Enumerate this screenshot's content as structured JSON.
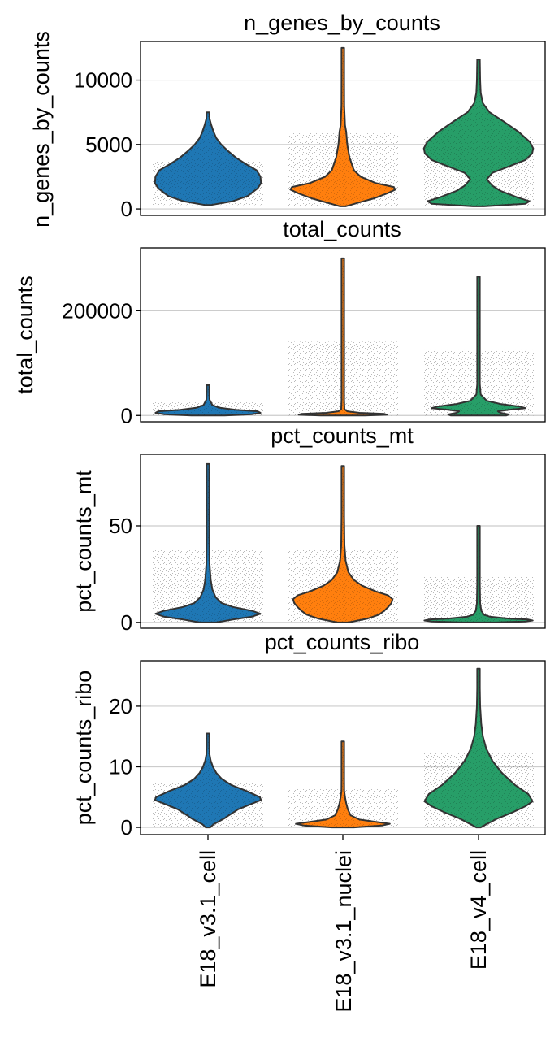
{
  "chart_data": {
    "type": "violin",
    "categories": [
      "E18_v3.1_cell",
      "E18_v3.1_nuclei",
      "E18_v4_cell"
    ],
    "colors": [
      "#1f77b4",
      "#ff7f0e",
      "#279e68"
    ],
    "panels": [
      {
        "title": "n_genes_by_counts",
        "ylabel": "n_genes_by_counts",
        "yticks": [
          0,
          5000,
          10000
        ],
        "ytick_labels": [
          "0",
          "5000",
          "10000"
        ],
        "ylim": [
          -500,
          13000
        ],
        "violins": [
          {
            "max": 7500,
            "profile": [
              [
                300,
                0.05
              ],
              [
                600,
                0.45
              ],
              [
                1000,
                0.72
              ],
              [
                1600,
                0.9
              ],
              [
                2000,
                0.96
              ],
              [
                2500,
                0.95
              ],
              [
                3000,
                0.88
              ],
              [
                3500,
                0.68
              ],
              [
                4000,
                0.5
              ],
              [
                4500,
                0.36
              ],
              [
                5000,
                0.24
              ],
              [
                5500,
                0.15
              ],
              [
                6000,
                0.1
              ],
              [
                6500,
                0.06
              ],
              [
                7000,
                0.03
              ],
              [
                7500,
                0.01
              ]
            ]
          },
          {
            "max": 12500,
            "profile": [
              [
                200,
                0.05
              ],
              [
                500,
                0.3
              ],
              [
                800,
                0.55
              ],
              [
                1200,
                0.8
              ],
              [
                1500,
                0.95
              ],
              [
                1700,
                0.92
              ],
              [
                2000,
                0.6
              ],
              [
                2500,
                0.32
              ],
              [
                3000,
                0.2
              ],
              [
                4000,
                0.12
              ],
              [
                5000,
                0.08
              ],
              [
                6000,
                0.06
              ],
              [
                6500,
                0.04
              ],
              [
                8000,
                0.025
              ],
              [
                10000,
                0.02
              ],
              [
                12500,
                0.01
              ]
            ]
          },
          {
            "max": 11600,
            "profile": [
              [
                200,
                0.1
              ],
              [
                400,
                0.85
              ],
              [
                600,
                0.92
              ],
              [
                900,
                0.7
              ],
              [
                1400,
                0.4
              ],
              [
                1800,
                0.25
              ],
              [
                2300,
                0.15
              ],
              [
                2800,
                0.25
              ],
              [
                3300,
                0.55
              ],
              [
                3800,
                0.85
              ],
              [
                4300,
                0.97
              ],
              [
                4700,
                0.99
              ],
              [
                5200,
                0.93
              ],
              [
                6000,
                0.72
              ],
              [
                6800,
                0.45
              ],
              [
                7500,
                0.2
              ],
              [
                8200,
                0.08
              ],
              [
                9000,
                0.04
              ],
              [
                10000,
                0.03
              ],
              [
                11600,
                0.01
              ]
            ]
          }
        ]
      },
      {
        "title": "total_counts",
        "ylabel": "total_counts",
        "yticks": [
          0,
          200000
        ],
        "ytick_labels": [
          "0",
          "200000"
        ],
        "ylim": [
          -12000,
          320000
        ],
        "violins": [
          {
            "max": 58000,
            "profile": [
              [
                0,
                0.3
              ],
              [
                2500,
                0.8
              ],
              [
                5000,
                0.95
              ],
              [
                8000,
                0.9
              ],
              [
                11000,
                0.5
              ],
              [
                15000,
                0.2
              ],
              [
                20000,
                0.08
              ],
              [
                30000,
                0.03
              ],
              [
                45000,
                0.02
              ],
              [
                58000,
                0.01
              ]
            ]
          },
          {
            "max": 300000,
            "profile": [
              [
                0,
                0.4
              ],
              [
                1500,
                0.8
              ],
              [
                3000,
                0.75
              ],
              [
                5000,
                0.3
              ],
              [
                8000,
                0.08
              ],
              [
                12000,
                0.03
              ],
              [
                30000,
                0.015
              ],
              [
                100000,
                0.012
              ],
              [
                200000,
                0.01
              ],
              [
                300000,
                0.008
              ]
            ]
          },
          {
            "max": 265000,
            "profile": [
              [
                0,
                0.5
              ],
              [
                2000,
                0.55
              ],
              [
                5000,
                0.4
              ],
              [
                8000,
                0.35
              ],
              [
                11000,
                0.55
              ],
              [
                14000,
                0.85
              ],
              [
                17000,
                0.75
              ],
              [
                22000,
                0.4
              ],
              [
                28000,
                0.15
              ],
              [
                40000,
                0.04
              ],
              [
                60000,
                0.02
              ],
              [
                120000,
                0.012
              ],
              [
                265000,
                0.008
              ]
            ]
          }
        ]
      },
      {
        "title": "pct_counts_mt",
        "ylabel": "pct_counts_mt",
        "yticks": [
          0,
          50
        ],
        "ytick_labels": [
          "0",
          "50"
        ],
        "ylim": [
          -3,
          87
        ],
        "violins": [
          {
            "max": 82,
            "profile": [
              [
                0,
                0.15
              ],
              [
                1.5,
                0.45
              ],
              [
                3,
                0.8
              ],
              [
                4.5,
                0.95
              ],
              [
                6,
                0.8
              ],
              [
                8,
                0.45
              ],
              [
                10,
                0.25
              ],
              [
                13,
                0.14
              ],
              [
                17,
                0.08
              ],
              [
                22,
                0.05
              ],
              [
                30,
                0.03
              ],
              [
                45,
                0.02
              ],
              [
                65,
                0.015
              ],
              [
                82,
                0.01
              ]
            ]
          },
          {
            "max": 81,
            "profile": [
              [
                0,
                0.1
              ],
              [
                2,
                0.45
              ],
              [
                4,
                0.65
              ],
              [
                6,
                0.75
              ],
              [
                8,
                0.82
              ],
              [
                10,
                0.88
              ],
              [
                12,
                0.9
              ],
              [
                14,
                0.82
              ],
              [
                16,
                0.6
              ],
              [
                19,
                0.35
              ],
              [
                22,
                0.2
              ],
              [
                26,
                0.1
              ],
              [
                32,
                0.05
              ],
              [
                40,
                0.03
              ],
              [
                55,
                0.02
              ],
              [
                81,
                0.01
              ]
            ]
          },
          {
            "max": 50,
            "profile": [
              [
                0,
                0.3
              ],
              [
                0.5,
                0.85
              ],
              [
                1,
                0.98
              ],
              [
                1.5,
                0.9
              ],
              [
                2,
                0.55
              ],
              [
                3,
                0.2
              ],
              [
                4,
                0.1
              ],
              [
                6,
                0.05
              ],
              [
                10,
                0.03
              ],
              [
                20,
                0.02
              ],
              [
                35,
                0.015
              ],
              [
                50,
                0.01
              ]
            ]
          }
        ]
      },
      {
        "title": "pct_counts_ribo",
        "ylabel": "pct_counts_ribo",
        "yticks": [
          0,
          10,
          20
        ],
        "ytick_labels": [
          "0",
          "10",
          "20"
        ],
        "ylim": [
          -1.2,
          27.5
        ],
        "violins": [
          {
            "max": 15.5,
            "profile": [
              [
                0,
                0.04
              ],
              [
                0.5,
                0.1
              ],
              [
                1,
                0.2
              ],
              [
                1.5,
                0.3
              ],
              [
                2,
                0.38
              ],
              [
                3,
                0.55
              ],
              [
                4,
                0.82
              ],
              [
                4.5,
                0.96
              ],
              [
                5,
                0.94
              ],
              [
                6,
                0.7
              ],
              [
                7,
                0.42
              ],
              [
                8,
                0.25
              ],
              [
                9,
                0.15
              ],
              [
                10,
                0.09
              ],
              [
                11,
                0.05
              ],
              [
                12,
                0.03
              ],
              [
                13.5,
                0.02
              ],
              [
                15.5,
                0.01
              ]
            ]
          },
          {
            "max": 14.2,
            "profile": [
              [
                0,
                0.2
              ],
              [
                0.3,
                0.7
              ],
              [
                0.6,
                0.85
              ],
              [
                0.9,
                0.6
              ],
              [
                1.3,
                0.3
              ],
              [
                2,
                0.14
              ],
              [
                3,
                0.09
              ],
              [
                4,
                0.06
              ],
              [
                5,
                0.04
              ],
              [
                6,
                0.025
              ],
              [
                8,
                0.018
              ],
              [
                11,
                0.012
              ],
              [
                14.2,
                0.008
              ]
            ]
          },
          {
            "max": 26.2,
            "profile": [
              [
                0,
                0.04
              ],
              [
                0.5,
                0.14
              ],
              [
                1.5,
                0.35
              ],
              [
                2.5,
                0.62
              ],
              [
                3.5,
                0.85
              ],
              [
                4.3,
                0.98
              ],
              [
                5.5,
                0.9
              ],
              [
                7,
                0.66
              ],
              [
                9,
                0.42
              ],
              [
                11,
                0.25
              ],
              [
                13,
                0.14
              ],
              [
                15,
                0.08
              ],
              [
                17,
                0.05
              ],
              [
                20,
                0.03
              ],
              [
                23,
                0.02
              ],
              [
                26.2,
                0.01
              ]
            ]
          }
        ]
      }
    ]
  }
}
